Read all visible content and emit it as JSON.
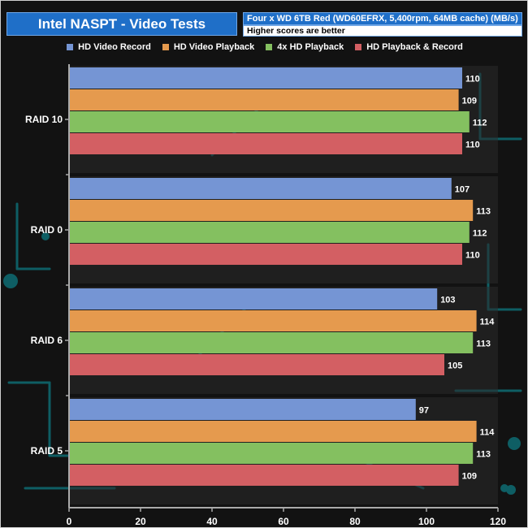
{
  "header": {
    "title": "Intel NASPT - Video Tests",
    "subtitle": "Four x WD 6TB Red (WD60EFRX, 5,400rpm, 64MB cache) (MB/s)",
    "note": "Higher scores are better"
  },
  "chart_data": {
    "type": "bar",
    "orientation": "horizontal",
    "title": "Intel NASPT - Video Tests",
    "subtitle": "Four x WD 6TB Red (WD60EFRX, 5,400rpm, 64MB cache) (MB/s)",
    "categories": [
      "RAID 10",
      "RAID 0",
      "RAID 6",
      "RAID 5"
    ],
    "series": [
      {
        "name": "HD Video Record",
        "color": "#7595d4",
        "values": [
          110,
          107,
          103,
          97
        ]
      },
      {
        "name": "HD Video Playback",
        "color": "#e59a4e",
        "values": [
          109,
          113,
          114,
          114
        ]
      },
      {
        "name": "4x HD Playback",
        "color": "#84c060",
        "values": [
          112,
          112,
          113,
          113
        ]
      },
      {
        "name": "HD Playback & Record",
        "color": "#d35f63",
        "values": [
          110,
          110,
          105,
          109
        ]
      }
    ],
    "xlim": [
      0,
      120
    ],
    "ticks": [
      "0",
      "20",
      "40",
      "60",
      "80",
      "100",
      "120"
    ],
    "tick_values": [
      0,
      20,
      40,
      60,
      80,
      100,
      120
    ],
    "legend": "top",
    "grid": false,
    "data_labels": true
  }
}
